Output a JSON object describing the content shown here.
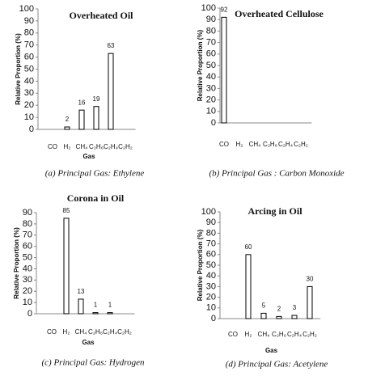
{
  "chart_data": [
    {
      "type": "bar",
      "title": "Overheated Oil",
      "caption": "(a) Principal Gas: Ethylene",
      "y_label": "Relative Proportion (%)",
      "x_label": "Gas",
      "categories": [
        "CO",
        "H₂",
        "CH₄",
        "C₂H₆",
        "C₂H₄",
        "C₂H₂"
      ],
      "values": [
        null,
        2,
        16,
        19,
        63,
        null
      ],
      "color": "#ffffff",
      "ylim": [
        0,
        100
      ],
      "yticks": [
        0,
        10,
        20,
        30,
        40,
        50,
        60,
        70,
        80,
        90,
        100
      ]
    },
    {
      "type": "bar",
      "title": "Overheated Cellulose",
      "caption": "(b) Principal Gas : Carbon Monoxide",
      "y_label": "Relative Proportion (%)",
      "categories": [
        "CO",
        "H₂",
        "CH₄",
        "C₂H₆",
        "C₂H₄",
        "C₂H₂"
      ],
      "values": [
        92,
        null,
        null,
        null,
        null,
        null
      ],
      "color": "#ffffff",
      "ylim": [
        0,
        100
      ],
      "yticks": [
        0,
        10,
        20,
        30,
        40,
        50,
        60,
        70,
        80,
        90,
        100
      ]
    },
    {
      "type": "bar",
      "title": "Corona in Oil",
      "caption": "(c) Principal Gas: Hydrogen",
      "y_label": "Relative Proportion (%)",
      "x_label": "Gas",
      "categories": [
        "CO",
        "H₂",
        "CH₄",
        "C₂H₆",
        "C₂H₄",
        "C₂H₂"
      ],
      "values": [
        null,
        85,
        13,
        1,
        1,
        null
      ],
      "color": "#ffffff",
      "ylim": [
        0,
        90
      ],
      "yticks": [
        0,
        10,
        20,
        30,
        40,
        50,
        60,
        70,
        80,
        90
      ]
    },
    {
      "type": "bar",
      "title": "Arcing in Oil",
      "caption": "(d) Principal Gas: Acetylene",
      "y_label": "Relative Proportion (%)",
      "x_label": "Gas",
      "categories": [
        "CO",
        "H₂",
        "CH₄",
        "C₂H₆",
        "C₂H₄",
        "C₂H₂"
      ],
      "values": [
        null,
        60,
        5,
        2,
        3,
        30
      ],
      "color": "#ffffff",
      "ylim": [
        0,
        100
      ],
      "yticks": [
        0,
        10,
        20,
        30,
        40,
        50,
        60,
        70,
        80,
        90,
        100
      ]
    }
  ]
}
